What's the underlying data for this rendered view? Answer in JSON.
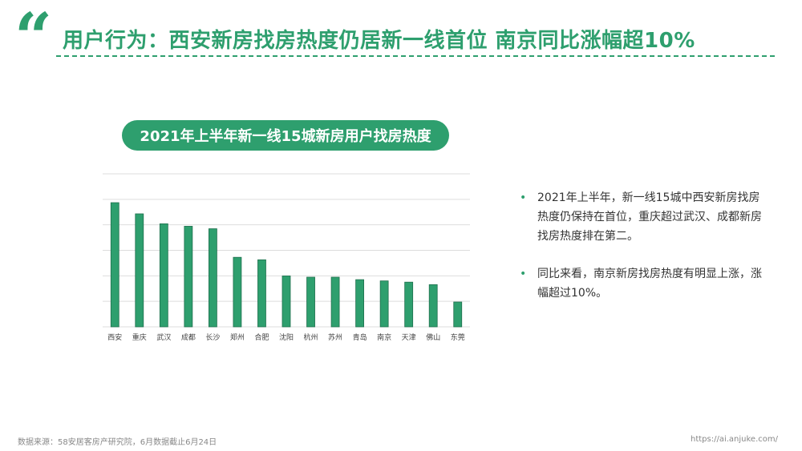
{
  "header": {
    "quote_glyph": "“",
    "title": "用户行为：西安新房找房热度仍居新一线首位 南京同比涨幅超10%"
  },
  "colors": {
    "accent": "#2e9f6e",
    "bar": "#2e9f6e",
    "bar_outline": "#1f6f4d",
    "grid": "#dddddd"
  },
  "chart_data": {
    "type": "bar",
    "title": "2021年上半年新一线15城新房用户找房热度",
    "categories": [
      "西安",
      "重庆",
      "武汉",
      "成都",
      "长沙",
      "郑州",
      "合肥",
      "沈阳",
      "杭州",
      "苏州",
      "青岛",
      "南京",
      "天津",
      "佛山",
      "东莞"
    ],
    "values": [
      100,
      91,
      83,
      81,
      79,
      56,
      54,
      41,
      40,
      40,
      38,
      37,
      36,
      34,
      20
    ],
    "xlabel": "",
    "ylabel": "",
    "ylim": [
      0,
      100
    ],
    "grid": true,
    "gridlines": 6,
    "legend": "none",
    "value_note": "unlabeled relative heat values estimated from bar heights"
  },
  "notes": [
    "2021年上半年，新一线15城中西安新房找房热度仍保持在首位，重庆超过武汉、成都新房找房热度排在第二。",
    "同比来看，南京新房找房热度有明显上涨，涨幅超过10%。"
  ],
  "note_bullet": "•",
  "footer": {
    "source": "数据来源：58安居客房产研究院，6月数据截止6月24日",
    "url": "https://ai.anjuke.com/"
  }
}
